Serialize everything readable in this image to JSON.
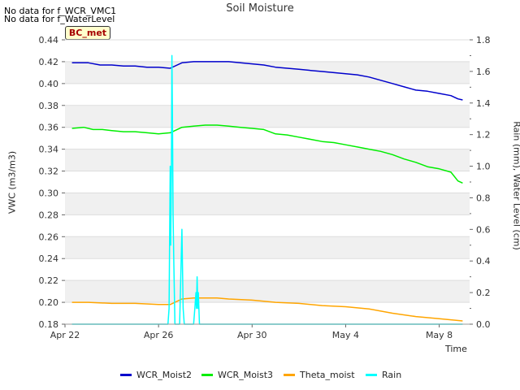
{
  "title": "Soil Moisture",
  "no_data_messages": [
    "No data for f_WCR_VMC1",
    "No data for f_WaterLevel"
  ],
  "station_label": "BC_met",
  "chart_data": {
    "type": "line",
    "title": "Soil Moisture",
    "xlabel": "Time",
    "ylabel_left": "VWC (m3/m3)",
    "ylabel_right": "Rain (mm), Water Level (cm)",
    "x_range_days": [
      0,
      17.3
    ],
    "xticks": [
      {
        "day": 0,
        "label": "Apr 22"
      },
      {
        "day": 4,
        "label": "Apr 26"
      },
      {
        "day": 8,
        "label": "Apr 30"
      },
      {
        "day": 12,
        "label": "May 4"
      },
      {
        "day": 16,
        "label": "May 8"
      }
    ],
    "ylim_left": [
      0.18,
      0.44
    ],
    "yticks_left": [
      "0.18",
      "0.20",
      "0.22",
      "0.24",
      "0.26",
      "0.28",
      "0.30",
      "0.32",
      "0.34",
      "0.36",
      "0.38",
      "0.40",
      "0.42",
      "0.44"
    ],
    "ylim_right": [
      0.0,
      1.8
    ],
    "yticks_right": [
      "0.0",
      "0.2",
      "0.4",
      "0.6",
      "0.8",
      "1.0",
      "1.2",
      "1.4",
      "1.6",
      "1.8"
    ],
    "series": [
      {
        "name": "WCR_Moist2",
        "color": "#0000cc",
        "axis": "left",
        "x": [
          0.3,
          1.0,
          1.5,
          2.0,
          2.5,
          3.0,
          3.5,
          4.0,
          4.5,
          5.0,
          5.5,
          6.0,
          6.5,
          7.0,
          7.5,
          8.0,
          8.5,
          9.0,
          9.5,
          10.0,
          10.5,
          11.0,
          11.5,
          12.0,
          12.5,
          13.0,
          13.5,
          14.0,
          14.5,
          15.0,
          15.5,
          16.0,
          16.5,
          16.8,
          17.0
        ],
        "y": [
          0.419,
          0.419,
          0.417,
          0.417,
          0.416,
          0.416,
          0.415,
          0.415,
          0.414,
          0.419,
          0.42,
          0.42,
          0.42,
          0.42,
          0.419,
          0.418,
          0.417,
          0.415,
          0.414,
          0.413,
          0.412,
          0.411,
          0.41,
          0.409,
          0.408,
          0.406,
          0.403,
          0.4,
          0.397,
          0.394,
          0.393,
          0.391,
          0.389,
          0.386,
          0.385
        ]
      },
      {
        "name": "WCR_Moist3",
        "color": "#00ee00",
        "axis": "left",
        "x": [
          0.3,
          0.8,
          1.2,
          1.6,
          2.0,
          2.5,
          3.0,
          3.5,
          4.0,
          4.5,
          5.0,
          5.5,
          6.0,
          6.5,
          7.0,
          7.5,
          8.0,
          8.5,
          9.0,
          9.5,
          10.0,
          10.5,
          11.0,
          11.5,
          12.0,
          12.5,
          13.0,
          13.5,
          14.0,
          14.5,
          15.0,
          15.5,
          16.0,
          16.5,
          16.8,
          17.0
        ],
        "y": [
          0.359,
          0.36,
          0.358,
          0.358,
          0.357,
          0.356,
          0.356,
          0.355,
          0.354,
          0.355,
          0.36,
          0.361,
          0.362,
          0.362,
          0.361,
          0.36,
          0.359,
          0.358,
          0.354,
          0.353,
          0.351,
          0.349,
          0.347,
          0.346,
          0.344,
          0.342,
          0.34,
          0.338,
          0.335,
          0.331,
          0.328,
          0.324,
          0.322,
          0.319,
          0.311,
          0.309
        ]
      },
      {
        "name": "Theta_moist",
        "color": "#ffa500",
        "axis": "left",
        "x": [
          0.3,
          1.0,
          2.0,
          3.0,
          4.0,
          4.5,
          5.0,
          5.5,
          6.0,
          6.5,
          7.0,
          8.0,
          9.0,
          10.0,
          11.0,
          12.0,
          13.0,
          14.0,
          15.0,
          16.0,
          16.5,
          17.0
        ],
        "y": [
          0.2,
          0.2,
          0.199,
          0.199,
          0.198,
          0.198,
          0.203,
          0.204,
          0.204,
          0.204,
          0.203,
          0.202,
          0.2,
          0.199,
          0.197,
          0.196,
          0.194,
          0.19,
          0.187,
          0.185,
          0.184,
          0.183
        ]
      },
      {
        "name": "Rain",
        "color": "#00ffff",
        "axis": "right",
        "x": [
          0.3,
          4.4,
          4.45,
          4.5,
          4.52,
          4.55,
          4.57,
          4.6,
          4.62,
          4.65,
          4.7,
          4.75,
          4.9,
          4.95,
          5.0,
          5.05,
          5.1,
          5.5,
          5.55,
          5.6,
          5.62,
          5.65,
          5.68,
          5.7,
          5.75,
          5.8,
          17.0
        ],
        "y": [
          0.0,
          0.0,
          0.1,
          1.0,
          0.5,
          1.0,
          1.7,
          1.2,
          0.7,
          0.4,
          0.0,
          0.0,
          0.0,
          0.3,
          0.6,
          0.1,
          0.0,
          0.0,
          0.1,
          0.2,
          0.1,
          0.3,
          0.1,
          0.2,
          0.0,
          0.0,
          0.0
        ]
      }
    ]
  }
}
